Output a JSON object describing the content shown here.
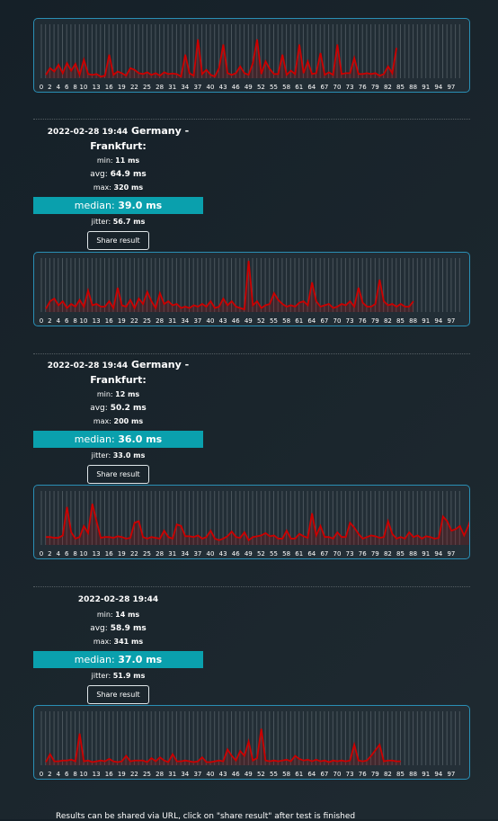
{
  "colors": {
    "line": "#cc0000",
    "accent": "#0aa0ad",
    "border": "#2a8fb5"
  },
  "chart_data": [
    {
      "type": "line",
      "x_ticks": [
        "0",
        "2",
        "4",
        "6",
        "8",
        "10",
        "13",
        "16",
        "19",
        "22",
        "25",
        "28",
        "31",
        "34",
        "37",
        "40",
        "43",
        "46",
        "49",
        "52",
        "55",
        "58",
        "61",
        "64",
        "67",
        "70",
        "73",
        "76",
        "79",
        "82",
        "85",
        "88",
        "91",
        "94",
        "97"
      ],
      "values": [
        20,
        60,
        40,
        80,
        30,
        90,
        45,
        85,
        20,
        110,
        25,
        20,
        25,
        10,
        15,
        140,
        20,
        40,
        30,
        15,
        60,
        50,
        30,
        25,
        35,
        20,
        30,
        15,
        35,
        25,
        28,
        25,
        10,
        140,
        30,
        15,
        230,
        25,
        50,
        20,
        10,
        60,
        200,
        30,
        20,
        30,
        70,
        30,
        20,
        90,
        230,
        25,
        100,
        55,
        25,
        25,
        140,
        20,
        45,
        25,
        200,
        30,
        100,
        25,
        30,
        150,
        20,
        35,
        20,
        200,
        25,
        30,
        30,
        120,
        25,
        25,
        30,
        25,
        30,
        15,
        25,
        70,
        30,
        180
      ],
      "ylim": [
        0,
        320
      ]
    },
    {
      "type": "line",
      "x_ticks": [
        "0",
        "2",
        "4",
        "6",
        "8",
        "10",
        "13",
        "16",
        "19",
        "22",
        "25",
        "28",
        "31",
        "34",
        "37",
        "40",
        "43",
        "46",
        "49",
        "52",
        "55",
        "58",
        "61",
        "64",
        "67",
        "70",
        "73",
        "76",
        "79",
        "82",
        "85",
        "88",
        "91",
        "94",
        "97"
      ],
      "values": [
        12,
        40,
        50,
        25,
        40,
        15,
        30,
        20,
        45,
        20,
        80,
        25,
        30,
        20,
        20,
        40,
        15,
        90,
        25,
        20,
        45,
        15,
        50,
        30,
        75,
        40,
        15,
        70,
        30,
        40,
        25,
        30,
        15,
        20,
        15,
        25,
        20,
        30,
        20,
        40,
        15,
        20,
        50,
        25,
        40,
        20,
        15,
        10,
        190,
        25,
        40,
        15,
        25,
        30,
        70,
        45,
        30,
        20,
        25,
        20,
        35,
        40,
        25,
        110,
        40,
        20,
        25,
        30,
        15,
        20,
        30,
        25,
        40,
        20,
        90,
        35,
        20,
        20,
        30,
        120,
        40,
        25,
        30,
        20,
        30,
        20,
        20,
        40
      ],
      "ylim": [
        0,
        200
      ]
    },
    {
      "type": "line",
      "x_ticks": [
        "0",
        "2",
        "4",
        "6",
        "8",
        "10",
        "13",
        "16",
        "19",
        "22",
        "25",
        "28",
        "31",
        "34",
        "37",
        "40",
        "43",
        "46",
        "49",
        "52",
        "55",
        "58",
        "61",
        "64",
        "67",
        "70",
        "73",
        "76",
        "79",
        "82",
        "85",
        "88",
        "91",
        "94",
        "97"
      ],
      "values": [
        50,
        50,
        45,
        45,
        60,
        240,
        80,
        40,
        50,
        120,
        75,
        260,
        150,
        45,
        50,
        50,
        45,
        55,
        50,
        40,
        45,
        140,
        150,
        50,
        40,
        50,
        45,
        40,
        90,
        50,
        40,
        130,
        120,
        55,
        55,
        50,
        60,
        40,
        50,
        90,
        40,
        30,
        40,
        55,
        85,
        50,
        45,
        80,
        30,
        50,
        55,
        60,
        75,
        55,
        60,
        40,
        40,
        90,
        40,
        40,
        70,
        55,
        45,
        200,
        60,
        120,
        50,
        50,
        40,
        80,
        50,
        50,
        140,
        110,
        70,
        40,
        50,
        60,
        55,
        45,
        50,
        150,
        70,
        40,
        50,
        40,
        80,
        50,
        60,
        40,
        55,
        50,
        40,
        45,
        180,
        150,
        90,
        100,
        120,
        60,
        120,
        200,
        80
      ],
      "ylim": [
        0,
        341
      ]
    },
    {
      "type": "line",
      "x_ticks": [
        "0",
        "2",
        "4",
        "6",
        "8",
        "10",
        "13",
        "16",
        "19",
        "22",
        "25",
        "28",
        "31",
        "34",
        "37",
        "40",
        "43",
        "46",
        "49",
        "52",
        "55",
        "58",
        "61",
        "64",
        "67",
        "70",
        "73",
        "76",
        "79",
        "82",
        "85",
        "88",
        "91",
        "94",
        "97"
      ],
      "values": [
        20,
        70,
        25,
        25,
        30,
        30,
        35,
        25,
        200,
        25,
        30,
        20,
        25,
        30,
        25,
        40,
        25,
        20,
        25,
        60,
        25,
        30,
        30,
        30,
        20,
        45,
        25,
        50,
        30,
        20,
        70,
        25,
        25,
        30,
        25,
        20,
        25,
        50,
        20,
        20,
        25,
        30,
        25,
        100,
        60,
        30,
        90,
        60,
        150,
        30,
        45,
        230,
        30,
        25,
        30,
        25,
        30,
        35,
        25,
        60,
        40,
        30,
        35,
        25,
        35,
        25,
        30,
        20,
        30,
        25,
        30,
        25,
        30,
        130,
        30,
        25,
        30,
        60,
        95,
        130,
        25,
        30,
        30,
        25,
        25
      ],
      "ylim": [
        0,
        341
      ]
    }
  ],
  "results": [
    {
      "date": "2022-02-28 19:44",
      "location_line1": "Germany -",
      "location_line2": "Frankfurt:",
      "min_label": "min:",
      "min_value": "11 ms",
      "avg_label": "avg:",
      "avg_value": "64.9 ms",
      "max_label": "max:",
      "max_value": "320 ms",
      "median_label": "median:",
      "median_value": "39.0 ms",
      "jitter_label": "jitter:",
      "jitter_value": "56.7 ms",
      "share_label": "Share result"
    },
    {
      "date": "2022-02-28 19:44",
      "location_line1": "Germany -",
      "location_line2": "Frankfurt:",
      "min_label": "min:",
      "min_value": "12 ms",
      "avg_label": "avg:",
      "avg_value": "50.2 ms",
      "max_label": "max:",
      "max_value": "200 ms",
      "median_label": "median:",
      "median_value": "36.0 ms",
      "jitter_label": "jitter:",
      "jitter_value": "33.0 ms",
      "share_label": "Share result"
    },
    {
      "date": "2022-02-28 19:44",
      "location_line1": "",
      "location_line2": "",
      "min_label": "min:",
      "min_value": "14 ms",
      "avg_label": "avg:",
      "avg_value": "58.9 ms",
      "max_label": "max:",
      "max_value": "341 ms",
      "median_label": "median:",
      "median_value": "37.0 ms",
      "jitter_label": "jitter:",
      "jitter_value": "51.9 ms",
      "share_label": "Share result"
    }
  ],
  "footer": "Results can be shared via URL, click on \"share result\" after test is finished"
}
